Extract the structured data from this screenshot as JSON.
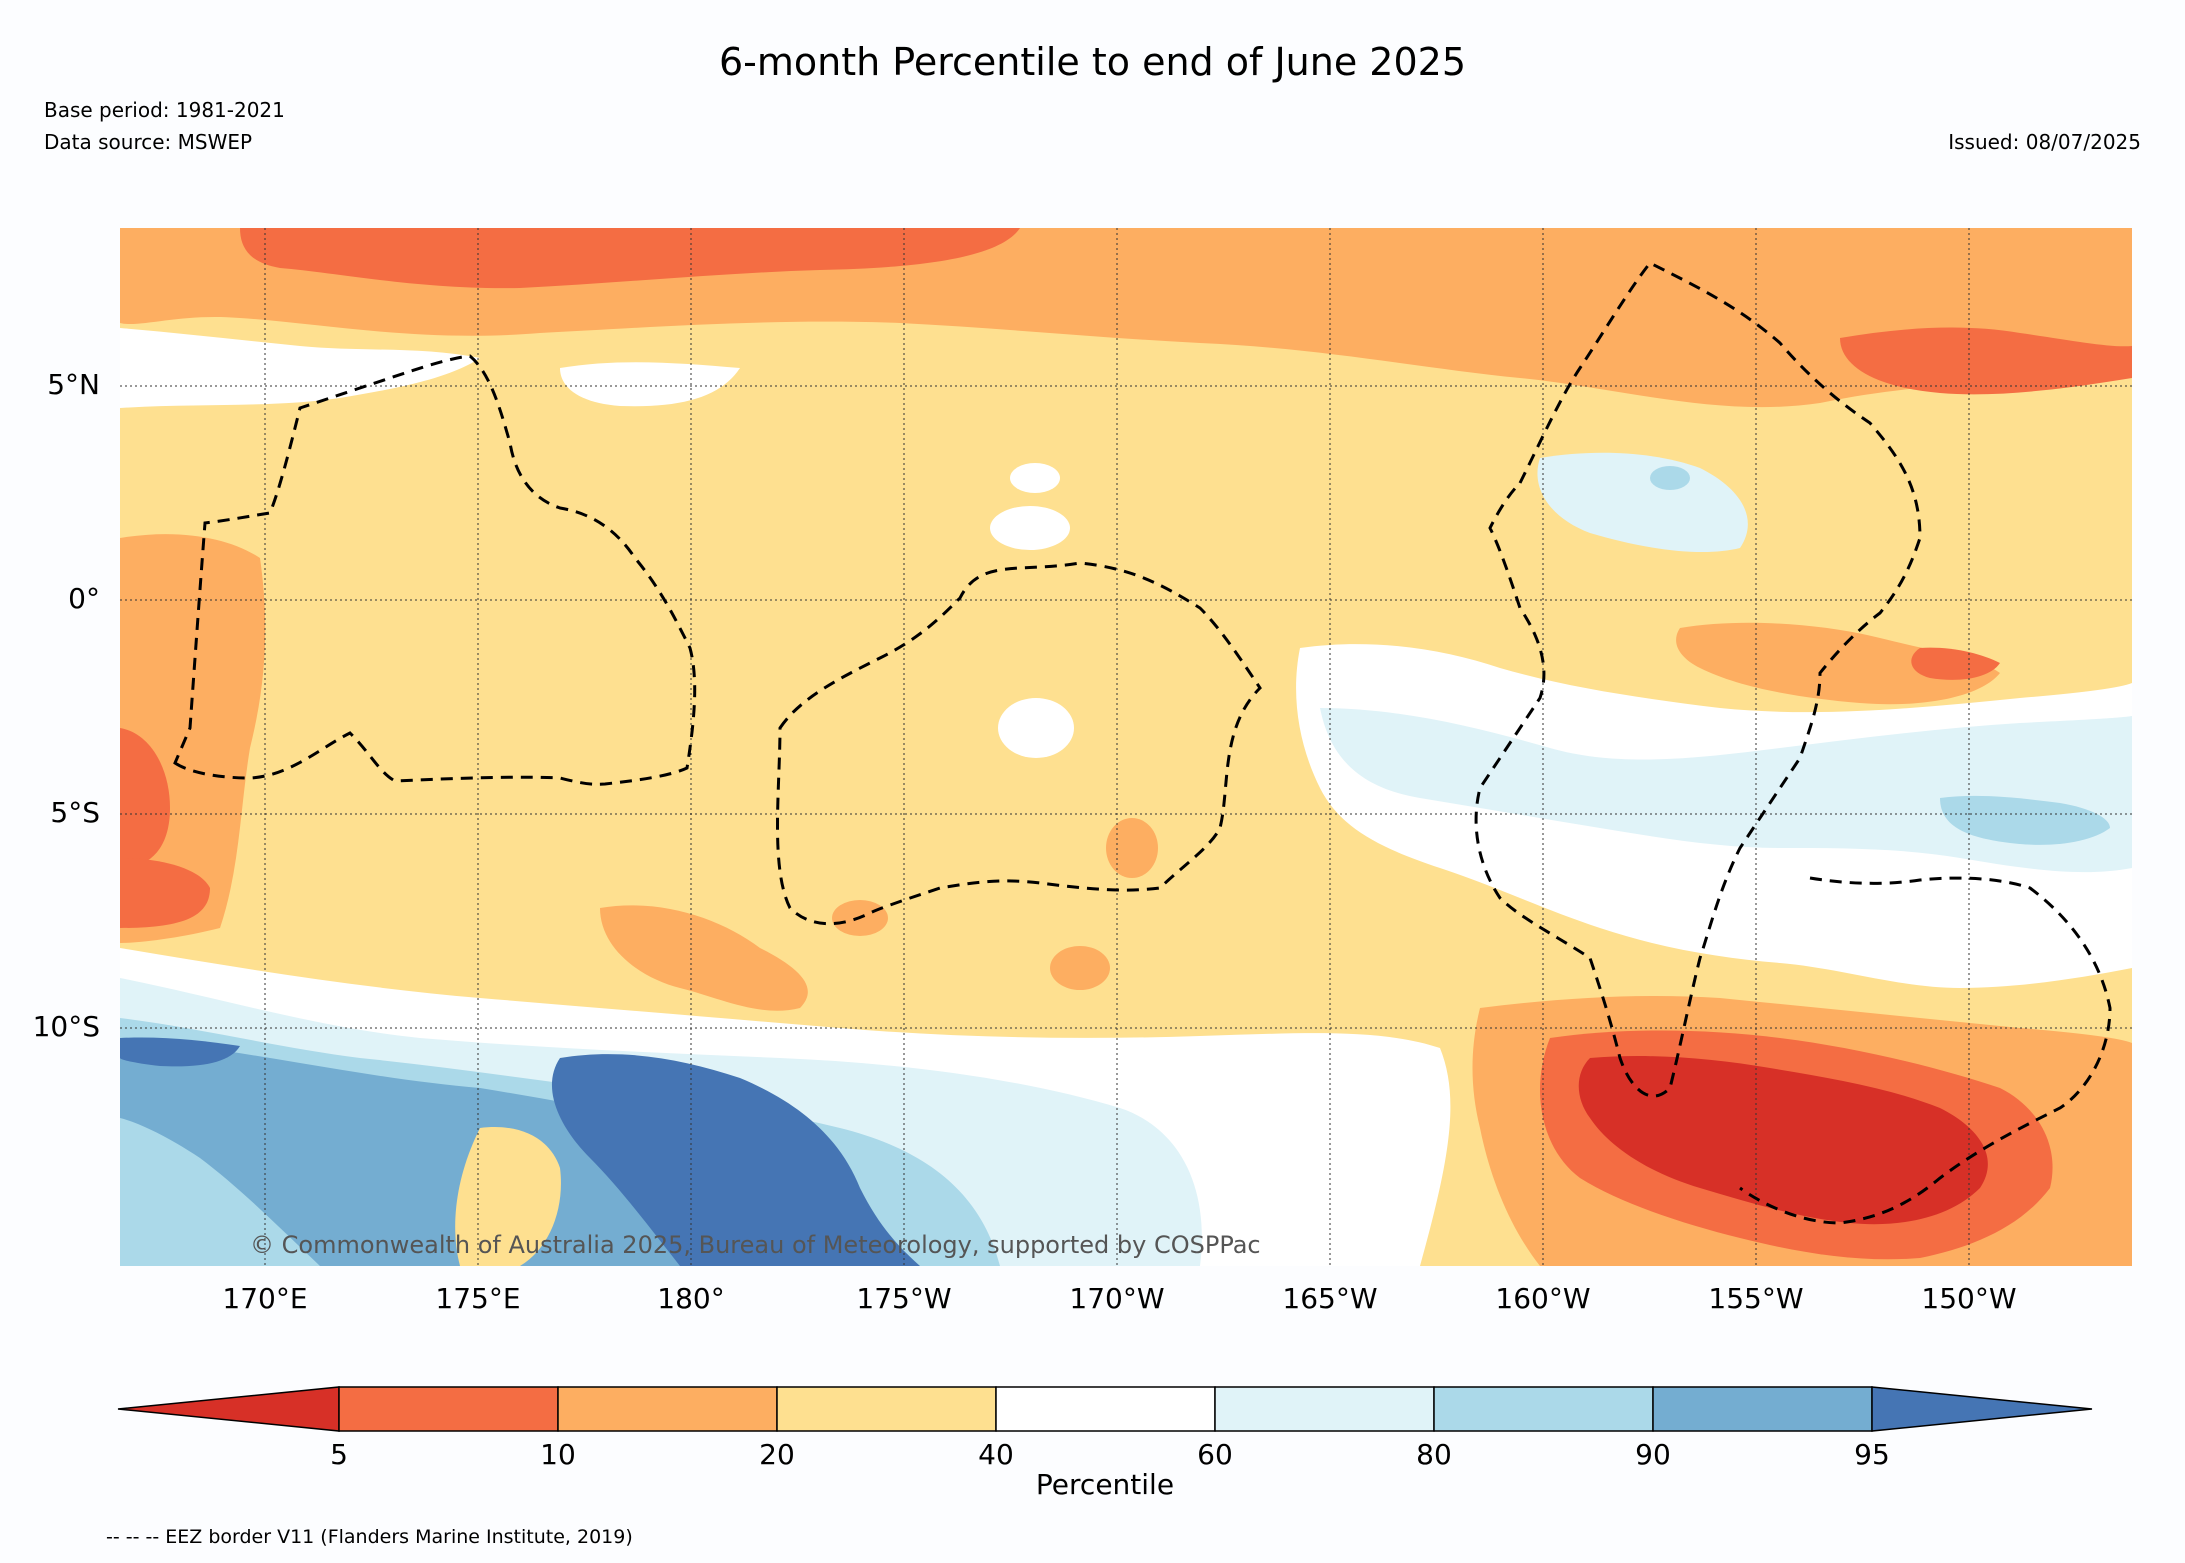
{
  "title": "6-month Percentile to end of June 2025",
  "base_period": "Base period: 1981-2021",
  "data_source": "Data source: MSWEP",
  "issued": "Issued: 08/07/2025",
  "copyright": "© Commonwealth of Australia 2025, Bureau of Meteorology, supported by COSPPac",
  "eez_legend": "-- -- -- EEZ border V11 (Flanders Marine Institute, 2019)",
  "lat_labels": [
    "5°N",
    "0°",
    "5°S",
    "10°S"
  ],
  "lon_labels": [
    "170°E",
    "175°E",
    "180°",
    "175°W",
    "170°W",
    "165°W",
    "160°W",
    "155°W",
    "150°W"
  ],
  "colorbar": {
    "label": "Percentile",
    "ticks": [
      "5",
      "10",
      "20",
      "40",
      "60",
      "80",
      "90",
      "95"
    ],
    "colors": [
      "#d73027",
      "#f46d43",
      "#fdae61",
      "#fee090",
      "#ffffff",
      "#e0f3f8",
      "#abd9e9",
      "#74add1",
      "#4575b4"
    ]
  }
}
